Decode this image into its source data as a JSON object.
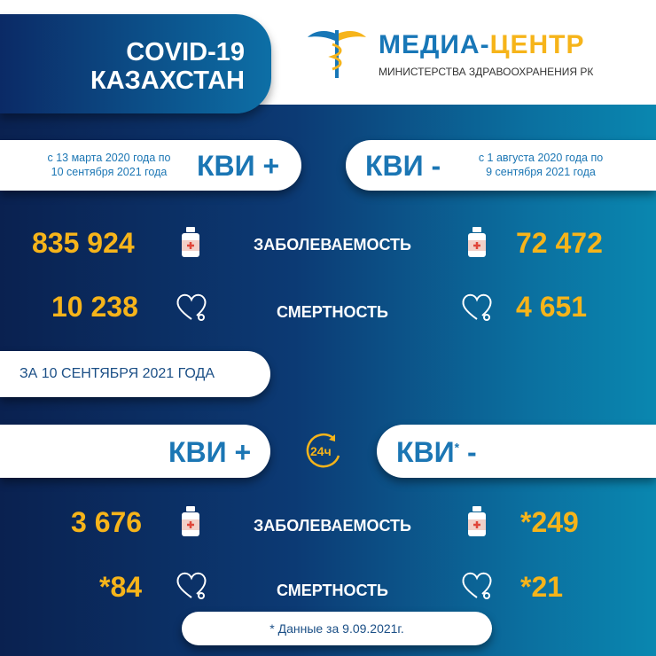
{
  "header": {
    "title_line1": "COVID-19",
    "title_line2": "КАЗАХСТАН",
    "logo_name_part1": "МЕДИА-",
    "logo_name_part2": "ЦЕНТР",
    "logo_subtitle": "МИНИСТЕРСТВА ЗДРАВООХРАНЕНИЯ РК"
  },
  "cumulative": {
    "left": {
      "label": "КВИ +",
      "period_line1": "с 13 марта 2020 года по",
      "period_line2": "10 сентября 2021 года",
      "cases": "835 924",
      "deaths": "10 238"
    },
    "right": {
      "label": "КВИ -",
      "period_line1": "с 1 августа 2020 года по",
      "period_line2": "9 сентября 2021 года",
      "cases": "72 472",
      "deaths": "4 651"
    },
    "cases_label": "ЗАБОЛЕВАЕМОСТЬ",
    "deaths_label": "СМЕРТНОСТЬ"
  },
  "daily": {
    "date_label": "ЗА 10 СЕНТЯБРЯ 2021 ГОДА",
    "badge": "24ч",
    "left": {
      "label": "КВИ +",
      "cases": "3 676",
      "deaths": "*84"
    },
    "right": {
      "label": "КВИ",
      "asterisk": "*",
      "suffix": "-",
      "cases": "*249",
      "deaths": "*21"
    },
    "cases_label": "ЗАБОЛЕВАЕМОСТЬ",
    "deaths_label": "СМЕРТНОСТЬ"
  },
  "footnote": "* Данные за 9.09.2021г.",
  "colors": {
    "accent": "#f6b41a",
    "brand_blue": "#1b76b4",
    "navy": "#0a2150",
    "teal": "#0a87b0"
  }
}
